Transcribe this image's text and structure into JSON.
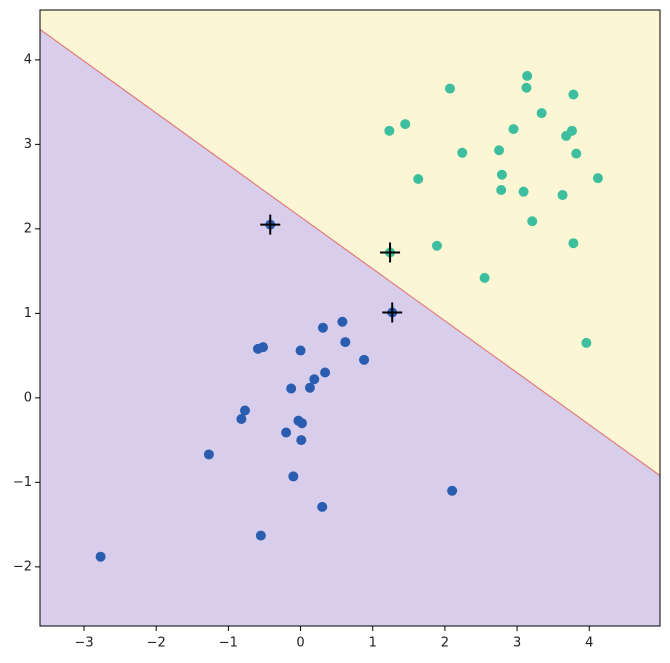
{
  "chart_data": {
    "type": "scatter",
    "xlim": [
      -3.61,
      4.98
    ],
    "ylim": [
      -2.7,
      4.59
    ],
    "xticks": [
      {
        "value": -3,
        "label": "−3"
      },
      {
        "value": -2,
        "label": "−2"
      },
      {
        "value": -1,
        "label": "−1"
      },
      0,
      1,
      2,
      3,
      4
    ],
    "yticks": [
      {
        "value": -2,
        "label": "−2"
      },
      {
        "value": -1,
        "label": "−1"
      },
      0,
      1,
      2,
      3,
      4
    ],
    "decision_boundary": {
      "x": [
        -3.61,
        4.98
      ],
      "y": [
        4.36,
        -0.92
      ],
      "color": "#e07a7a",
      "above_color": "#fdf6d4",
      "below_color": "#d8cdeb"
    },
    "series": [
      {
        "color": "#3dbf9f",
        "marker": "circle",
        "x": [
          3.14,
          2.07,
          3.13,
          3.78,
          1.45,
          1.23,
          3.34,
          2.95,
          3.76,
          3.68,
          2.24,
          2.75,
          3.82,
          2.79,
          1.63,
          4.12,
          2.78,
          3.09,
          3.63,
          3.21,
          1.89,
          3.78,
          2.55,
          3.96,
          1.24
        ],
        "values": [
          3.81,
          3.66,
          3.67,
          3.59,
          3.24,
          3.16,
          3.37,
          3.18,
          3.16,
          3.1,
          2.9,
          2.93,
          2.89,
          2.64,
          2.59,
          2.6,
          2.46,
          2.44,
          2.4,
          2.09,
          1.8,
          1.83,
          1.42,
          0.65,
          1.72
        ]
      },
      {
        "color": "#2a5db0",
        "marker": "circle",
        "x": [
          -0.42,
          1.27,
          0.58,
          0.31,
          0.62,
          -0.52,
          -0.59,
          0,
          0.88,
          0.34,
          0.19,
          0.13,
          -0.13,
          -0.77,
          -0.82,
          -0.03,
          0.02,
          -0.2,
          0.01,
          -1.27,
          -0.1,
          2.1,
          0.3,
          -0.55,
          -2.77
        ],
        "values": [
          2.05,
          1.01,
          0.9,
          0.83,
          0.66,
          0.6,
          0.58,
          0.56,
          0.45,
          0.3,
          0.22,
          0.12,
          0.11,
          -0.15,
          -0.25,
          -0.27,
          -0.3,
          -0.41,
          -0.5,
          -0.67,
          -0.93,
          -1.1,
          -1.29,
          -1.63,
          -1.88
        ]
      },
      {
        "color": "#000000",
        "marker": "plus",
        "x": [
          -0.42,
          1.24,
          1.27
        ],
        "values": [
          2.05,
          1.72,
          1.01
        ]
      }
    ]
  }
}
